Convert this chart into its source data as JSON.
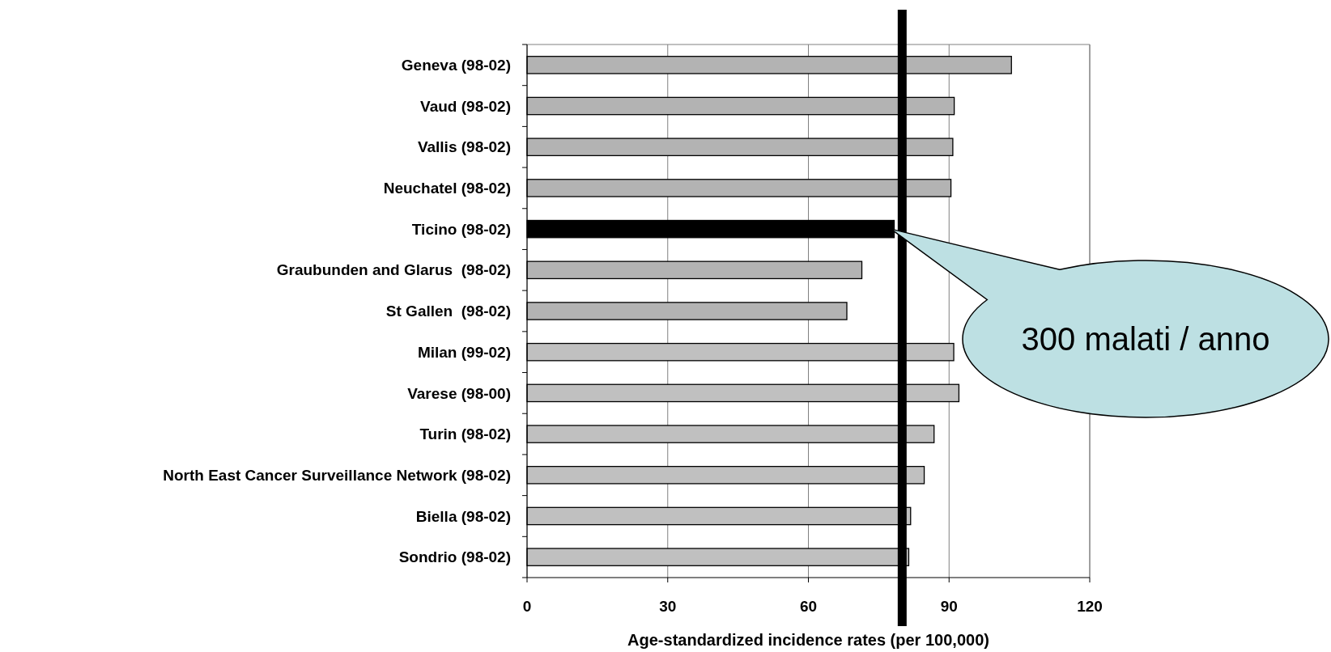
{
  "chart_data": {
    "type": "bar",
    "orientation": "horizontal",
    "xlabel": "Age-standardized incidence rates (per 100,000)",
    "categories": [
      "Geneva (98-02)",
      "Vaud (98-02)",
      "Vallis (98-02)",
      "Neuchatel (98-02)",
      "Ticino (98-02)",
      "Graubunden and Glarus  (98-02)",
      "St Gallen  (98-02)",
      "Milan (99-02)",
      "Varese (98-00)",
      "Turin (98-02)",
      "North East Cancer Surveillance Network (98-02)",
      "Biella (98-02)",
      "Sondrio (98-02)"
    ],
    "values": [
      103.3,
      91.1,
      90.8,
      90.4,
      78.3,
      71.4,
      68.2,
      91,
      92.1,
      86.8,
      84.7,
      81.8,
      81.4
    ],
    "colors": [
      "#b3b3b3",
      "#b3b3b3",
      "#b3b3b3",
      "#b3b3b3",
      "#000000",
      "#b3b3b3",
      "#b3b3b3",
      "#c0c0c0",
      "#c0c0c0",
      "#c0c0c0",
      "#c0c0c0",
      "#c0c0c0",
      "#c0c0c0"
    ],
    "xlim": [
      0,
      120
    ],
    "xticks": [
      0,
      30,
      60,
      90,
      120
    ],
    "grid": "x",
    "ref_lines": [
      {
        "axis": "x",
        "value": 80,
        "color": "#000000"
      }
    ],
    "annotations": [
      {
        "text": "300 malati / anno",
        "x": 78.3,
        "y": "Ticino (98-02)"
      }
    ]
  }
}
